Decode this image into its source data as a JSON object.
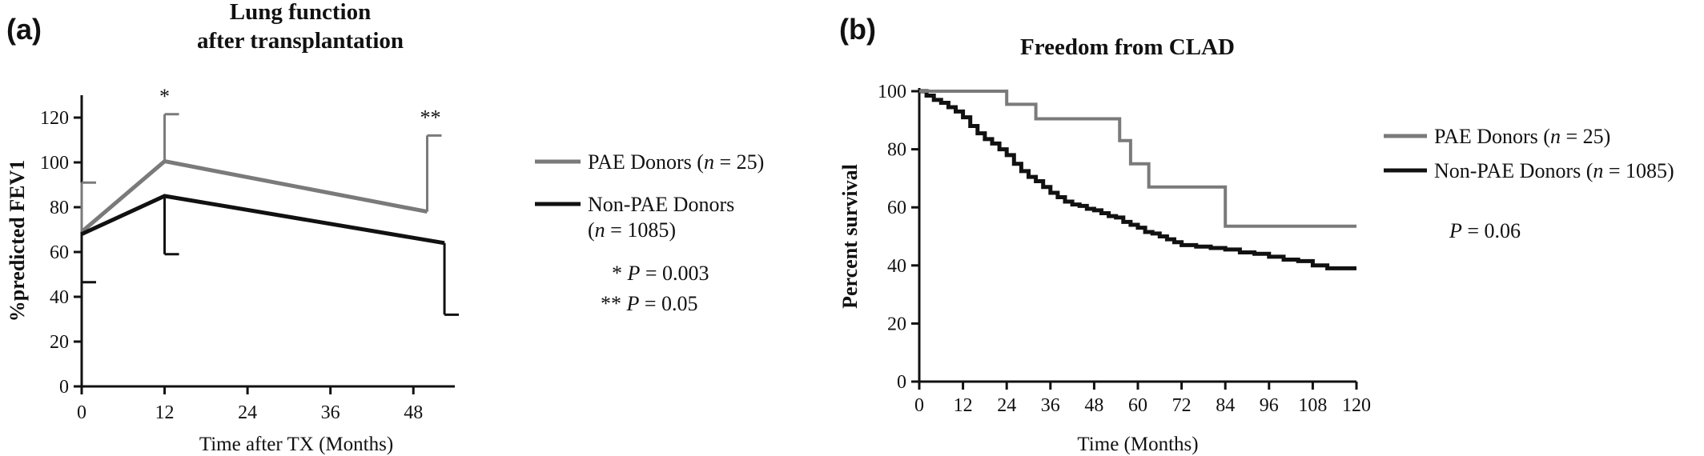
{
  "colors": {
    "pae": "#7a7a7a",
    "non_pae": "#111111",
    "axis": "#111111"
  },
  "chart_data": [
    {
      "panel": "(a)",
      "type": "line",
      "title": [
        "Lung function",
        "after transplantation"
      ],
      "xlabel": "Time after TX (Months)",
      "ylabel": "%predicted FEV1",
      "xlim": [
        0,
        54
      ],
      "ylim": [
        0,
        130
      ],
      "xticks": [
        0,
        12,
        24,
        36,
        48
      ],
      "yticks": [
        0,
        20,
        40,
        60,
        80,
        100,
        120
      ],
      "series": [
        {
          "name": "PAE Donors",
          "n_label": "(n = 25)",
          "color": "#7a7a7a",
          "x": [
            0,
            12,
            50
          ],
          "y": [
            69,
            100.5,
            78
          ],
          "error_up": [
            91,
            121.5,
            112
          ]
        },
        {
          "name": "Non-PAE Donors",
          "n_label": "(n = 1085)",
          "color": "#111111",
          "x": [
            0,
            12,
            52.5
          ],
          "y": [
            68,
            85,
            64
          ],
          "error_down": [
            46.5,
            59,
            32
          ]
        }
      ],
      "significance_marks": [
        {
          "x": 12,
          "y_above": 121.5,
          "label": "*"
        },
        {
          "x": 50,
          "y_above": 112,
          "label": "**"
        }
      ],
      "annotations": [
        "* P = 0.003",
        "** P = 0.05"
      ],
      "legend_position": "right"
    },
    {
      "panel": "(b)",
      "type": "line",
      "title": [
        "Freedom from CLAD"
      ],
      "xlabel": "Time (Months)",
      "ylabel": "Percent survival",
      "xlim": [
        0,
        120
      ],
      "ylim": [
        0,
        100
      ],
      "xticks": [
        0,
        12,
        24,
        36,
        48,
        60,
        72,
        84,
        96,
        108,
        120
      ],
      "yticks": [
        0,
        20,
        40,
        60,
        80,
        100
      ],
      "series": [
        {
          "name": "PAE Donors",
          "n_label": "(n = 25)",
          "color": "#7a7a7a",
          "step": true,
          "x": [
            0,
            24,
            32,
            55,
            58,
            63,
            84,
            120
          ],
          "y": [
            100,
            95.5,
            90.5,
            83,
            75,
            67,
            53.5,
            53.5
          ]
        },
        {
          "name": "Non-PAE Donors",
          "n_label": "(n = 1085)",
          "color": "#111111",
          "step": true,
          "x": [
            0,
            2,
            4,
            6,
            8,
            10,
            12,
            14,
            16,
            18,
            20,
            22,
            24,
            26,
            28,
            30,
            32,
            34,
            36,
            38,
            40,
            42,
            44,
            46,
            48,
            50,
            52,
            54,
            56,
            58,
            60,
            62,
            64,
            66,
            68,
            70,
            72,
            76,
            80,
            84,
            88,
            92,
            96,
            100,
            104,
            108,
            112,
            120
          ],
          "y": [
            100,
            98.5,
            97,
            96,
            94.5,
            93,
            91,
            88,
            85.5,
            83.5,
            82,
            80,
            78,
            75,
            72.5,
            70.5,
            69,
            67,
            65,
            63.5,
            62,
            61,
            60.5,
            59.5,
            59,
            58,
            57,
            56.5,
            55,
            54,
            53,
            51.5,
            51,
            50,
            49,
            48,
            47,
            46.5,
            46,
            45.5,
            44.5,
            44,
            43,
            42,
            41.5,
            40,
            39,
            39
          ]
        }
      ],
      "annotations": [
        "P = 0.06"
      ],
      "legend_position": "right"
    }
  ]
}
